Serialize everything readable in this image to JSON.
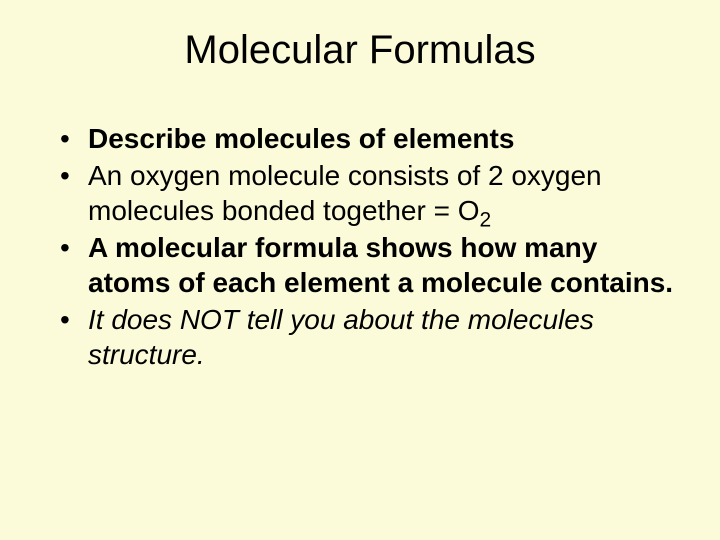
{
  "slide": {
    "background_color": "#fbfbd9",
    "text_color": "#000000",
    "title": {
      "text": "Molecular Formulas",
      "fontsize": 40,
      "weight": "normal"
    },
    "bullets": {
      "fontsize": 28,
      "line_height": 1.25,
      "items": [
        {
          "text": "Describe molecules of elements",
          "bold": true,
          "italic": false,
          "has_formula": false
        },
        {
          "prefix": "An oxygen molecule consists of 2 oxygen molecules bonded together = O",
          "subscript": "2",
          "bold": false,
          "italic": false,
          "has_formula": true
        },
        {
          "text": "A molecular formula shows how many atoms of each element a molecule contains.",
          "bold": true,
          "italic": false,
          "has_formula": false
        },
        {
          "text": "It does NOT tell you about the molecules structure.",
          "bold": false,
          "italic": true,
          "has_formula": false
        }
      ]
    }
  }
}
